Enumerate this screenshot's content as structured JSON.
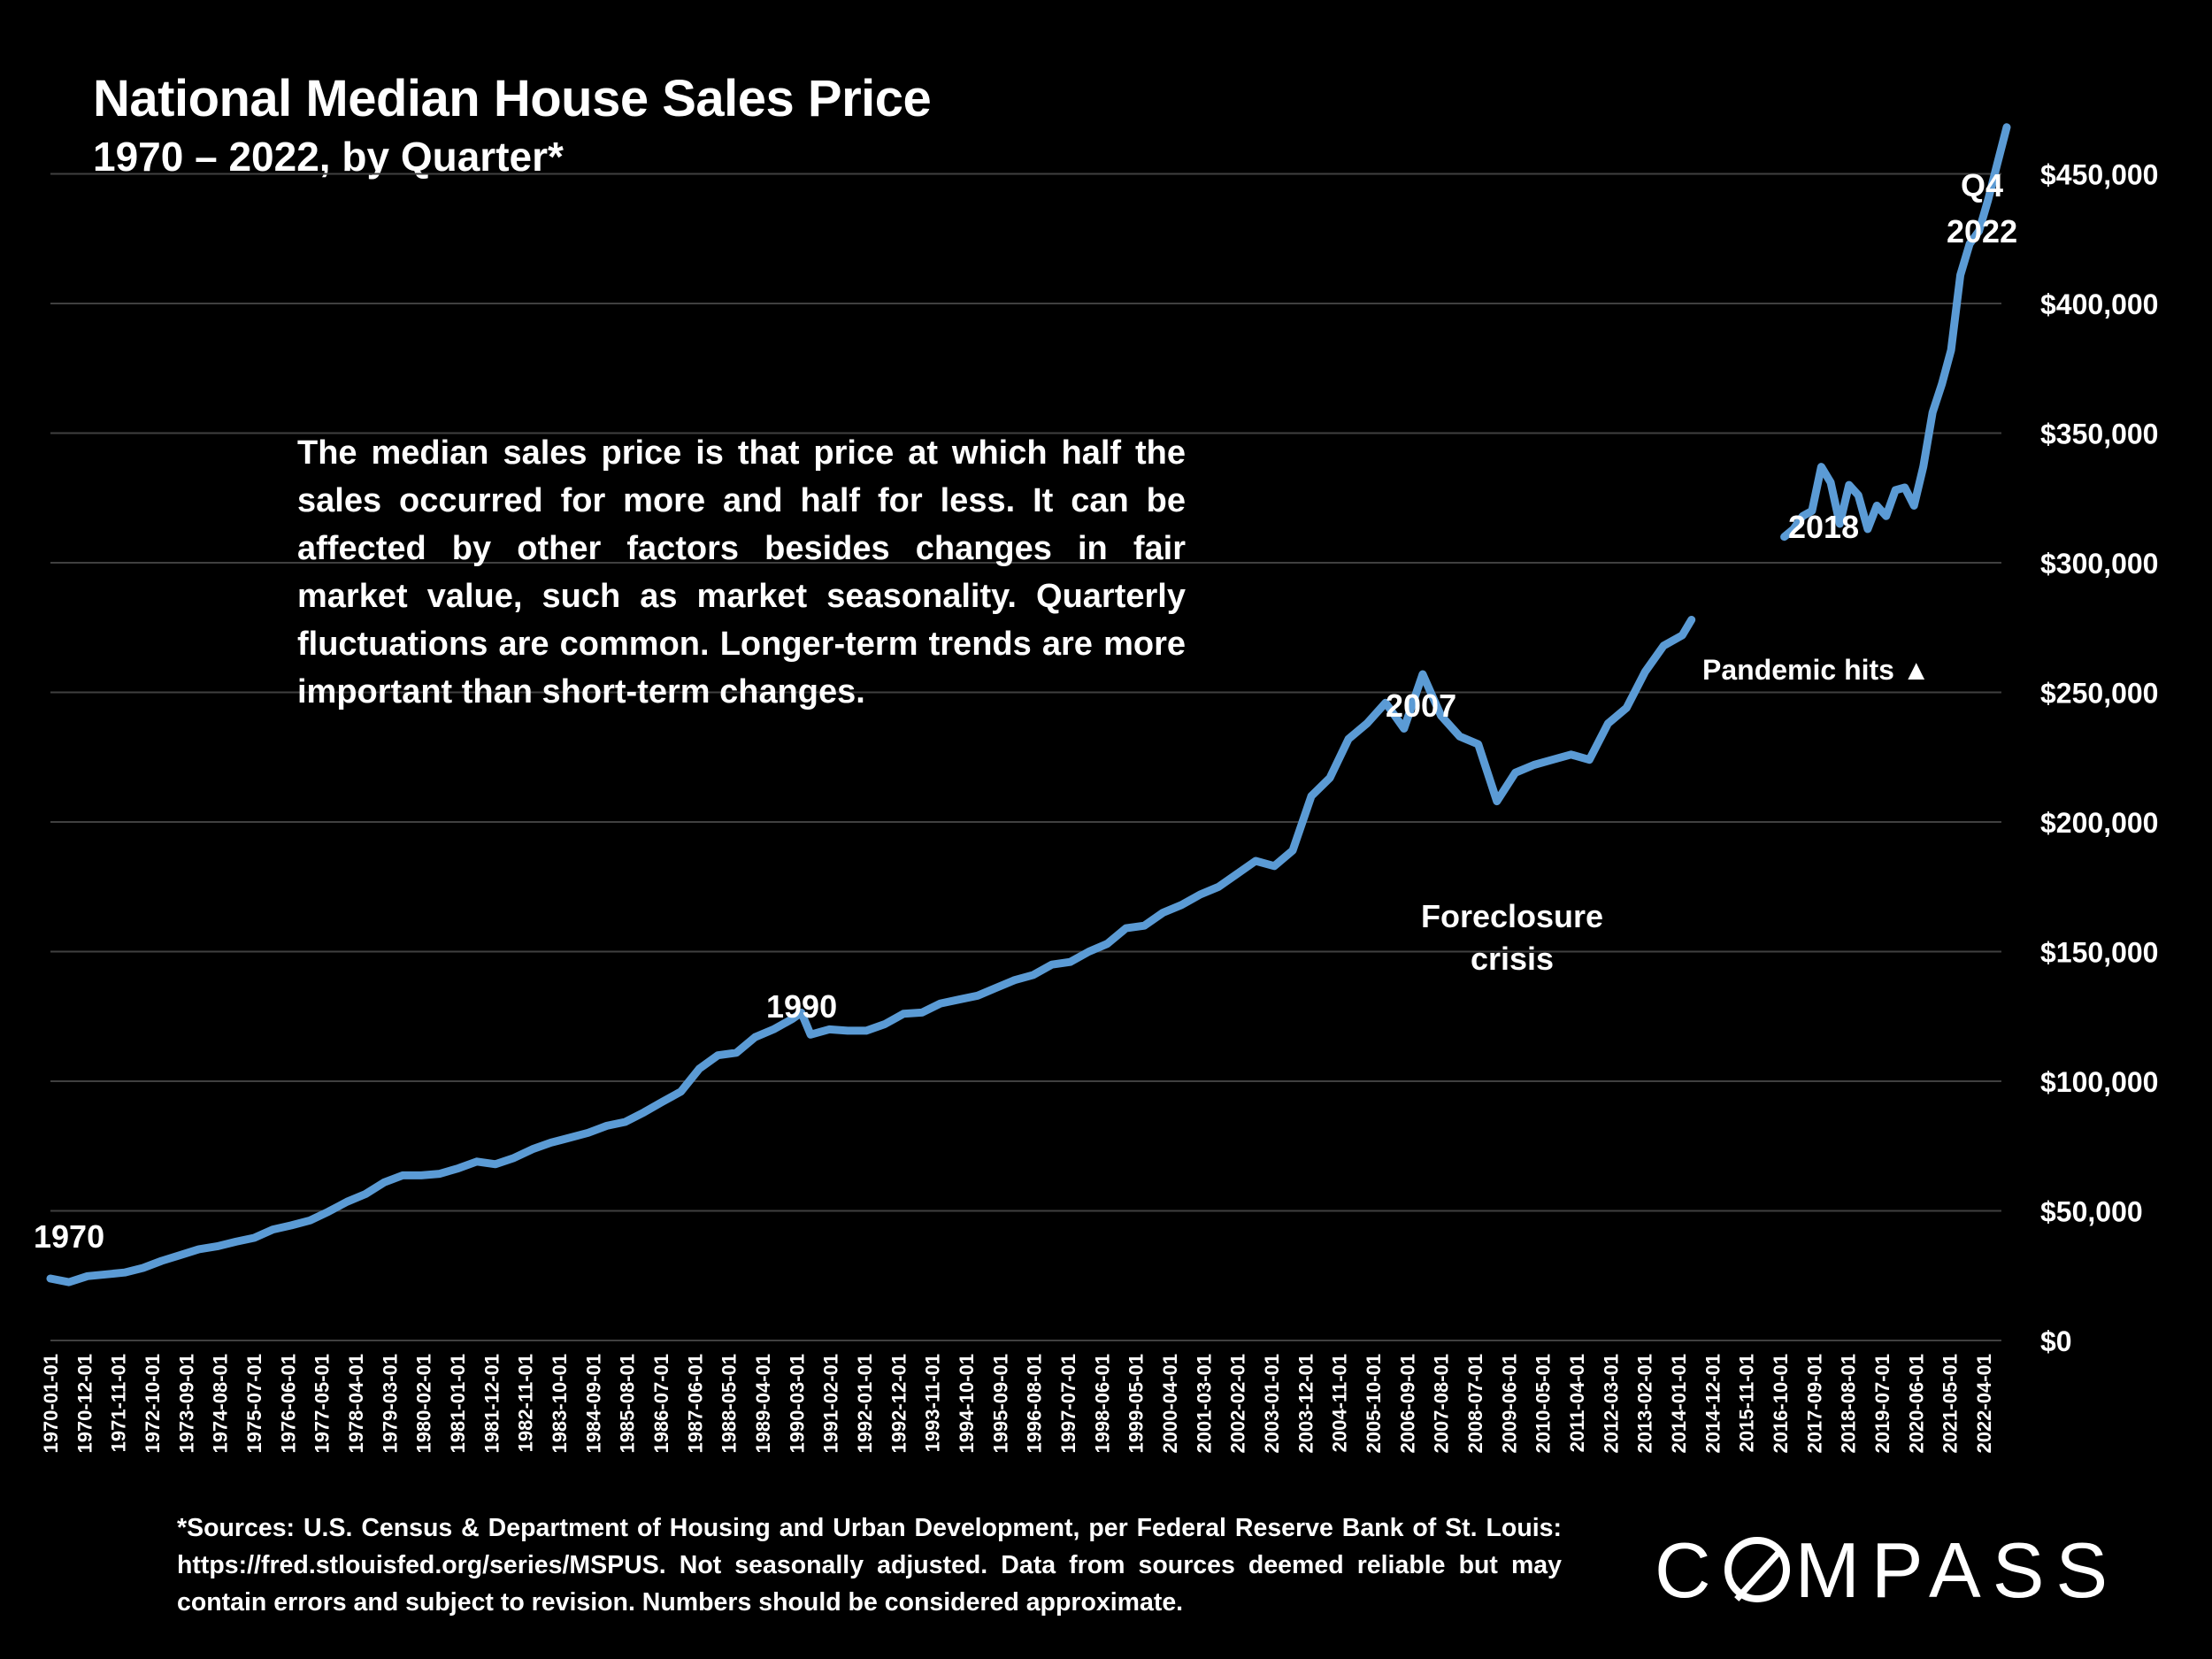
{
  "title": "National Median House Sales Price",
  "subtitle": "1970 – 2022, by Quarter*",
  "note": "The median sales price is that price at which half the sales occurred for more and half for less. It can be affected by other factors besides changes in fair market value, such as market seasonality. Quarterly fluctuations are common. Longer-term trends are more important than short-term changes.",
  "annotations": {
    "a1970": "1970",
    "a1990": "1990",
    "a2007": "2007",
    "foreclosure": "Foreclosure\ncrisis",
    "a2018": "2018",
    "pandemic": "Pandemic hits ▲",
    "q4": "Q4\n2022"
  },
  "source": "*Sources: U.S. Census & Department of Housing and Urban Development, per Federal Reserve Bank of St. Louis: https://fred.stlouisfed.org/series/MSPUS. Not seasonally adjusted. Data from sources deemed reliable but may contain errors and subject to revision. Numbers should be considered approximate.",
  "logo": "COMPASS",
  "colors": {
    "background": "#000000",
    "line": "#5B9BD5",
    "grid": "#404040",
    "text": "#ffffff"
  },
  "chart_data": {
    "type": "line",
    "title": "National Median House Sales Price",
    "subtitle": "1970 – 2022, by Quarter*",
    "ylim": [
      0,
      500000
    ],
    "yticks": [
      0,
      50000,
      100000,
      150000,
      200000,
      250000,
      300000,
      350000,
      400000,
      450000
    ],
    "ytick_labels": [
      "$0",
      "$50,000",
      "$100,000",
      "$150,000",
      "$200,000",
      "$250,000",
      "$300,000",
      "$350,000",
      "$400,000",
      "$450,000"
    ],
    "xtick_labels": [
      "1970-01-01",
      "1970-12-01",
      "1971-11-01",
      "1972-10-01",
      "1973-09-01",
      "1974-08-01",
      "1975-07-01",
      "1976-06-01",
      "1977-05-01",
      "1978-04-01",
      "1979-03-01",
      "1980-02-01",
      "1981-01-01",
      "1981-12-01",
      "1982-11-01",
      "1983-10-01",
      "1984-09-01",
      "1985-08-01",
      "1986-07-01",
      "1987-06-01",
      "1988-05-01",
      "1989-04-01",
      "1990-03-01",
      "1991-02-01",
      "1992-01-01",
      "1992-12-01",
      "1993-11-01",
      "1994-10-01",
      "1995-09-01",
      "1996-08-01",
      "1997-07-01",
      "1998-06-01",
      "1999-05-01",
      "2000-04-01",
      "2001-03-01",
      "2002-02-01",
      "2003-01-01",
      "2003-12-01",
      "2004-11-01",
      "2005-10-01",
      "2006-09-01",
      "2007-08-01",
      "2008-07-01",
      "2009-06-01",
      "2010-05-01",
      "2011-04-01",
      "2012-03-01",
      "2013-02-01",
      "2014-01-01",
      "2014-12-01",
      "2015-11-01",
      "2016-10-01",
      "2017-09-01",
      "2018-08-01",
      "2019-07-01",
      "2020-06-01",
      "2021-05-01",
      "2022-04-01"
    ],
    "axis_position": "right",
    "grid": true,
    "series": [
      {
        "segments": [
          {
            "x": [
              "1970-01-01",
              "1970-07-01",
              "1971-01-01",
              "1971-07-01",
              "1972-01-01",
              "1972-07-01",
              "1973-01-01",
              "1973-07-01",
              "1974-01-01",
              "1974-07-01",
              "1975-01-01",
              "1975-07-01",
              "1976-01-01",
              "1976-07-01",
              "1977-01-01",
              "1977-07-01",
              "1978-01-01",
              "1978-07-01",
              "1979-01-01",
              "1979-07-01",
              "1980-01-01",
              "1980-07-01",
              "1981-01-01",
              "1981-07-01",
              "1982-01-01",
              "1982-07-01",
              "1983-01-01",
              "1983-07-01",
              "1984-01-01",
              "1984-07-01",
              "1985-01-01",
              "1985-07-01",
              "1986-01-01",
              "1986-07-01",
              "1987-01-01",
              "1987-07-01",
              "1988-01-01",
              "1988-07-01",
              "1989-01-01",
              "1989-07-01",
              "1990-01-01",
              "1990-04-01",
              "1990-07-01",
              "1991-01-01",
              "1991-07-01",
              "1992-01-01",
              "1992-07-01",
              "1993-01-01",
              "1993-07-01",
              "1994-01-01",
              "1994-07-01",
              "1995-01-01",
              "1995-07-01",
              "1996-01-01",
              "1996-07-01",
              "1997-01-01",
              "1997-07-01",
              "1998-01-01",
              "1998-07-01",
              "1999-01-01",
              "1999-07-01",
              "2000-01-01",
              "2000-07-01",
              "2001-01-01",
              "2001-07-01",
              "2002-01-01",
              "2002-07-01",
              "2003-01-01",
              "2003-07-01",
              "2004-01-01",
              "2004-07-01",
              "2005-01-01",
              "2005-07-01",
              "2006-01-01",
              "2006-07-01",
              "2007-01-01",
              "2007-07-01",
              "2008-01-01",
              "2008-07-01",
              "2009-01-01",
              "2009-07-01",
              "2010-01-01",
              "2010-07-01",
              "2011-01-01",
              "2011-07-01",
              "2012-01-01",
              "2012-07-01",
              "2013-01-01",
              "2013-07-01",
              "2014-01-01",
              "2014-04-01"
            ],
            "y": [
              23900,
              22500,
              24800,
              25500,
              26200,
              28000,
              30700,
              32900,
              35200,
              36300,
              38100,
              39600,
              42800,
              44400,
              46300,
              49700,
              53500,
              56500,
              61000,
              63700,
              63700,
              64300,
              66400,
              69000,
              68000,
              70400,
              73800,
              76300,
              78200,
              80100,
              82800,
              84300,
              88000,
              92000,
              96000,
              104800,
              110000,
              111000,
              117000,
              120000,
              124000,
              126500,
              118000,
              120000,
              119500,
              119500,
              122000,
              126000,
              126500,
              130000,
              131500,
              133000,
              136000,
              139000,
              141000,
              145000,
              146000,
              150000,
              153000,
              159000,
              160000,
              165000,
              168000,
              172000,
              175000,
              180000,
              185000,
              183000,
              189000,
              210000,
              217000,
              232000,
              238000,
              246000,
              236000,
              257000,
              241000,
              233000,
              230000,
              208000,
              219000,
              222000,
              224000,
              226000,
              224000,
              238000,
              244000,
              258000,
              268000,
              272000,
              278000
            ]
          },
          {
            "x": [
              "2016-10-01",
              "2017-01-01",
              "2017-04-01",
              "2017-07-01",
              "2017-10-01",
              "2018-01-01",
              "2018-04-01",
              "2018-07-01",
              "2018-10-01",
              "2019-01-01",
              "2019-04-01",
              "2019-07-01",
              "2019-10-01",
              "2020-01-01",
              "2020-04-01",
              "2020-07-01",
              "2020-10-01",
              "2021-01-01",
              "2021-04-01",
              "2021-07-01",
              "2021-10-01",
              "2022-01-01",
              "2022-04-01",
              "2022-07-01",
              "2022-10-01"
            ],
            "y": [
              310000,
              313000,
              318000,
              320000,
              337000,
              331000,
              315000,
              330000,
              326000,
              313000,
              322000,
              318000,
              328000,
              329000,
              322000,
              337000,
              358000,
              369000,
              382000,
              411000,
              423000,
              428000,
              440000,
              454000,
              468000
            ]
          }
        ]
      }
    ]
  }
}
